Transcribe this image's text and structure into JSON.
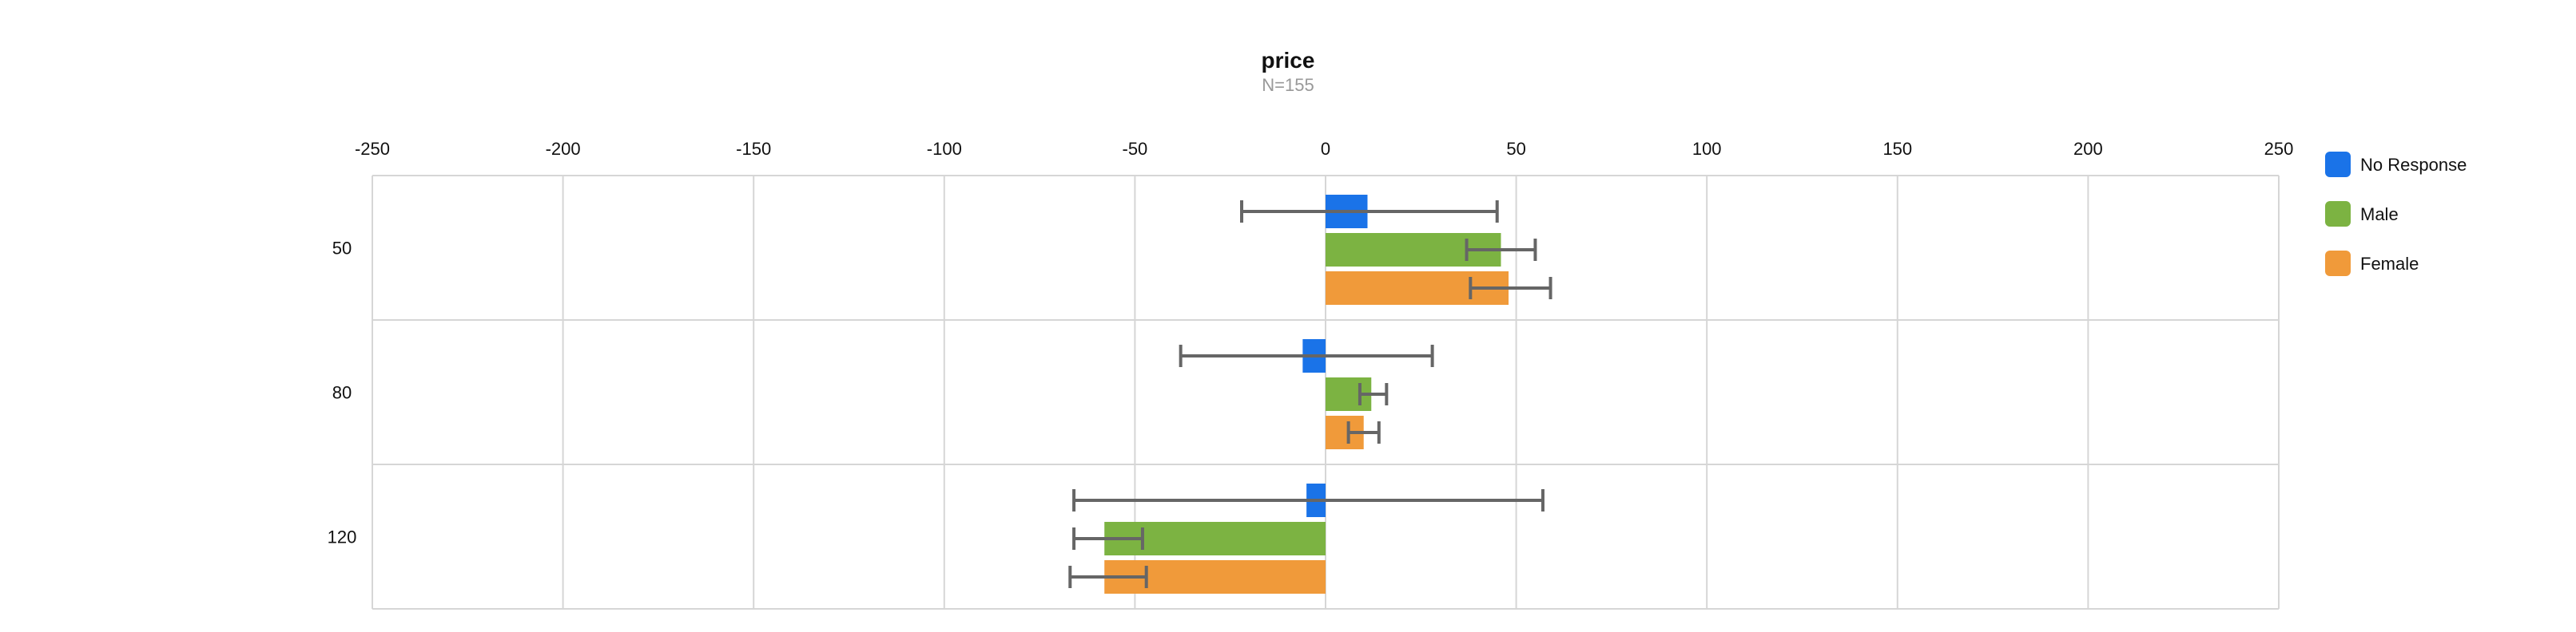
{
  "chart_data": {
    "type": "bar",
    "orientation": "horizontal",
    "title": "price",
    "subtitle": "N=155",
    "xlabel": "",
    "ylabel": "",
    "xlim": [
      -250,
      250
    ],
    "x_ticks": [
      "-250",
      "-200",
      "-150",
      "-100",
      "-50",
      "0",
      "50",
      "100",
      "150",
      "200",
      "250"
    ],
    "x_tick_values": [
      -250,
      -200,
      -150,
      -100,
      -50,
      0,
      50,
      100,
      150,
      200,
      250
    ],
    "categories": [
      "50",
      "80",
      "120"
    ],
    "grid": true,
    "legend_position": "right",
    "series": [
      {
        "name": "No Response",
        "color": "#1a73e8",
        "values": [
          11,
          -6,
          -5
        ],
        "error_low": [
          -22,
          -38,
          -66
        ],
        "error_high": [
          45,
          28,
          57
        ]
      },
      {
        "name": "Male",
        "color": "#7cb342",
        "values": [
          46,
          12,
          -58
        ],
        "error_low": [
          37,
          9,
          -66
        ],
        "error_high": [
          55,
          16,
          -48
        ]
      },
      {
        "name": "Female",
        "color": "#f09a3a",
        "values": [
          48,
          10,
          -58
        ],
        "error_low": [
          38,
          6,
          -67
        ],
        "error_high": [
          59,
          14,
          -47
        ]
      }
    ]
  }
}
